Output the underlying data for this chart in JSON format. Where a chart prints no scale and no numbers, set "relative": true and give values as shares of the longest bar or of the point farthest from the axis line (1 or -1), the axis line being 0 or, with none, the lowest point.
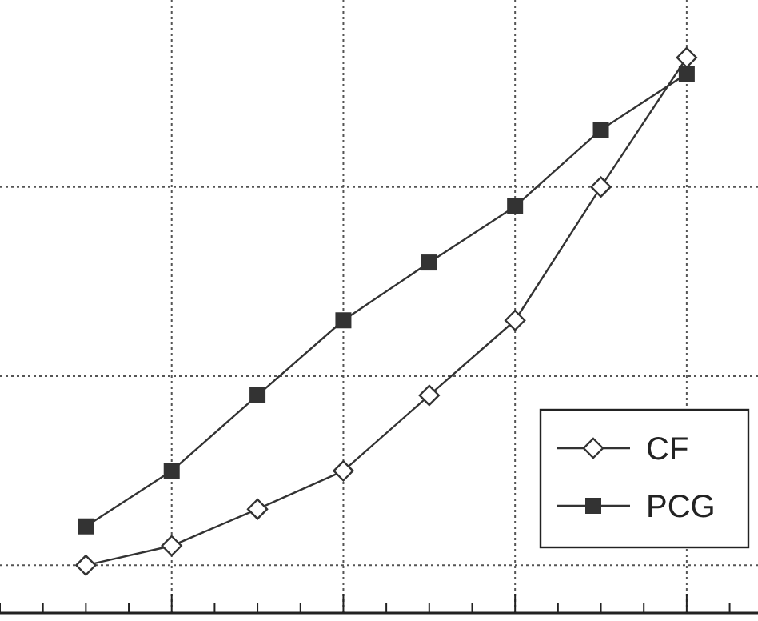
{
  "chart_data": {
    "type": "line",
    "relative": true,
    "categories": [
      null,
      null,
      null,
      null,
      null,
      null,
      null,
      null
    ],
    "series": [
      {
        "name": "CF",
        "color": "#333333",
        "marker": "diamond",
        "values": [
          0.086,
          0.121,
          0.187,
          0.256,
          0.392,
          0.527,
          0.767,
          1
        ]
      },
      {
        "name": "PCG",
        "color": "#333333",
        "marker": "square",
        "values": [
          0.156,
          0.256,
          0.392,
          0.527,
          0.631,
          0.732,
          0.87,
          0.971
        ]
      }
    ],
    "grid": true,
    "legend": "bottom right",
    "line_style": "solid"
  }
}
